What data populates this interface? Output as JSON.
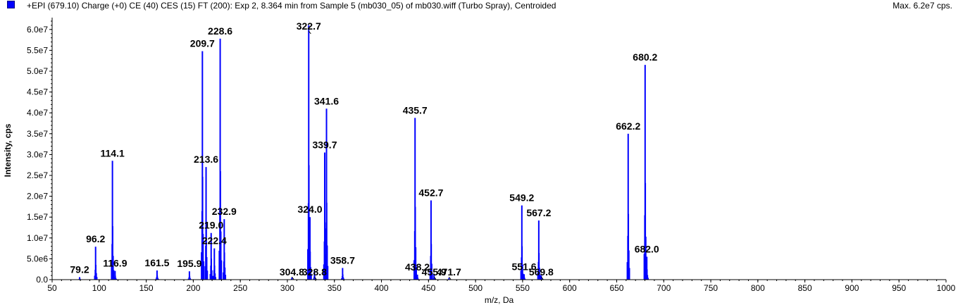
{
  "header": {
    "title": "+EPI (679.10) Charge (+0) CE (40) CES (15) FT (200): Exp 2, 8.364 min from Sample 5 (mb030_05) of mb030.wiff (Turbo Spray), Centroided",
    "max_label": "Max. 6.2e7 cps."
  },
  "colors": {
    "series": "#0000ff",
    "axis": "#000000",
    "background": "#ffffff"
  },
  "chart_data": {
    "type": "bar",
    "xlabel": "m/z, Da",
    "ylabel": "Intensity, cps",
    "xlim": [
      50,
      1000
    ],
    "ylim": [
      0,
      62000000.0
    ],
    "grid": false,
    "x_ticks": [
      50,
      100,
      150,
      200,
      250,
      300,
      350,
      400,
      450,
      500,
      550,
      600,
      650,
      700,
      750,
      800,
      850,
      900,
      950,
      1000
    ],
    "y_ticks": [
      {
        "value": 0,
        "label": "0.0"
      },
      {
        "value": 5000000,
        "label": "5.0e6"
      },
      {
        "value": 10000000,
        "label": "1.0e7"
      },
      {
        "value": 15000000,
        "label": "1.5e7"
      },
      {
        "value": 20000000,
        "label": "2.0e7"
      },
      {
        "value": 25000000,
        "label": "2.5e7"
      },
      {
        "value": 30000000,
        "label": "3.0e7"
      },
      {
        "value": 35000000,
        "label": "3.5e7"
      },
      {
        "value": 40000000,
        "label": "4.0e7"
      },
      {
        "value": 45000000,
        "label": "4.5e7"
      },
      {
        "value": 50000000,
        "label": "5.0e7"
      },
      {
        "value": 55000000,
        "label": "5.5e7"
      },
      {
        "value": 60000000,
        "label": "6.0e7"
      }
    ],
    "peaks": [
      {
        "mz": 79.2,
        "intensity": 600000
      },
      {
        "mz": 96.2,
        "intensity": 7900000
      },
      {
        "mz": 114.1,
        "intensity": 28500000
      },
      {
        "mz": 116.9,
        "intensity": 2100000
      },
      {
        "mz": 161.5,
        "intensity": 2200000
      },
      {
        "mz": 195.9,
        "intensity": 2000000
      },
      {
        "mz": 209.7,
        "intensity": 54800000
      },
      {
        "mz": 213.6,
        "intensity": 27000000
      },
      {
        "mz": 219.0,
        "intensity": 11200000
      },
      {
        "mz": 222.4,
        "intensity": 7500000
      },
      {
        "mz": 228.6,
        "intensity": 57800000
      },
      {
        "mz": 232.9,
        "intensity": 14500000
      },
      {
        "mz": 304.8,
        "intensity": 500000
      },
      {
        "mz": 322.7,
        "intensity": 61000000
      },
      {
        "mz": 324.0,
        "intensity": 15000000
      },
      {
        "mz": 328.8,
        "intensity": 2000000
      },
      {
        "mz": 339.7,
        "intensity": 30500000
      },
      {
        "mz": 341.6,
        "intensity": 41000000
      },
      {
        "mz": 358.7,
        "intensity": 2800000
      },
      {
        "mz": 435.7,
        "intensity": 38800000
      },
      {
        "mz": 438.2,
        "intensity": 1200000
      },
      {
        "mz": 452.7,
        "intensity": 19000000
      },
      {
        "mz": 455.9,
        "intensity": 1200000
      },
      {
        "mz": 471.7,
        "intensity": 400000
      },
      {
        "mz": 549.2,
        "intensity": 17800000
      },
      {
        "mz": 551.6,
        "intensity": 1300000
      },
      {
        "mz": 567.2,
        "intensity": 14200000
      },
      {
        "mz": 569.8,
        "intensity": 1000000
      },
      {
        "mz": 662.2,
        "intensity": 35000000
      },
      {
        "mz": 680.2,
        "intensity": 51500000
      },
      {
        "mz": 682.0,
        "intensity": 5500000
      }
    ]
  }
}
